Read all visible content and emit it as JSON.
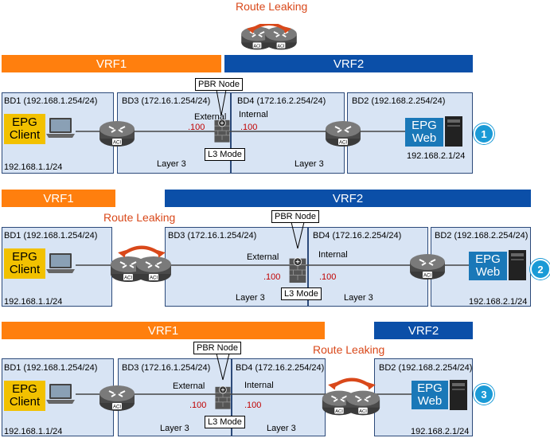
{
  "top": {
    "leak_label": "Route Leaking"
  },
  "d1": {
    "vrf1": "VRF1",
    "vrf2": "VRF2",
    "bd1": "BD1 (192.168.1.254/24)",
    "bd3": "BD3 (172.16.1.254/24)",
    "bd4": "BD4 (172.16.2.254/24)",
    "bd2": "BD2 (192.168.2.254/24)",
    "epg_client": "EPG\nClient",
    "epg_web": "EPG\nWeb",
    "client_ip": "192.168.1.1/24",
    "web_ip": "192.168.2.1/24",
    "external": "External",
    "internal": "Internal",
    "ext_ip": ".100",
    "int_ip": ".100",
    "layer3_left": "Layer 3",
    "layer3_right": "Layer 3",
    "pbr_node": "PBR Node",
    "l3_mode": "L3 Mode",
    "badge": "1"
  },
  "d2": {
    "vrf1": "VRF1",
    "vrf2": "VRF2",
    "leak_label": "Route Leaking",
    "bd1": "BD1 (192.168.1.254/24)",
    "bd3": "BD3 (172.16.1.254/24)",
    "bd4": "BD4 (172.16.2.254/24)",
    "bd2": "BD2 (192.168.2.254/24)",
    "epg_client": "EPG\nClient",
    "epg_web": "EPG\nWeb",
    "client_ip": "192.168.1.1/24",
    "web_ip": "192.168.2.1/24",
    "external": "External",
    "internal": "Internal",
    "ext_ip": ".100",
    "int_ip": ".100",
    "layer3_left": "Layer 3",
    "layer3_right": "Layer 3",
    "pbr_node": "PBR Node",
    "l3_mode": "L3 Mode",
    "badge": "2"
  },
  "d3": {
    "vrf1": "VRF1",
    "vrf2": "VRF2",
    "leak_label": "Route Leaking",
    "bd1": "BD1 (192.168.1.254/24)",
    "bd3": "BD3 (172.16.1.254/24)",
    "bd4": "BD4 (172.16.2.254/24)",
    "bd2": "BD2 (192.168.2.254/24)",
    "epg_client": "EPG\nClient",
    "epg_web": "EPG\nWeb",
    "client_ip": "192.168.1.1/24",
    "web_ip": "192.168.2.1/24",
    "external": "External",
    "internal": "Internal",
    "ext_ip": ".100",
    "int_ip": ".100",
    "layer3_left": "Layer 3",
    "layer3_right": "Layer 3",
    "pbr_node": "PBR Node",
    "l3_mode": "L3 Mode",
    "badge": "3"
  },
  "icons": {
    "router": "router-icon",
    "firewall": "firewall-icon",
    "laptop": "laptop-icon",
    "server": "server-icon",
    "arrow": "leak-arrow-icon"
  },
  "colors": {
    "vrf1": "#ff7f0e",
    "vrf2": "#0b4fa8",
    "bd_fill": "#d8e4f4",
    "leak_text": "#d9481a",
    "ip_red": "#c00000",
    "epg_client": "#f2c100",
    "epg_web": "#1a78b8",
    "badge": "#1a9ad6"
  }
}
